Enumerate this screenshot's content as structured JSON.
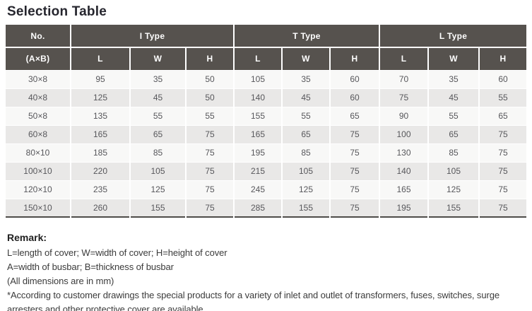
{
  "page": {
    "title": "Selection Table"
  },
  "colors": {
    "header_bg": "#56524e",
    "header_text": "#ffffff",
    "row_light": "#f8f8f7",
    "row_dark": "#e9e8e7",
    "cell_text": "#57575b",
    "table_bottom_border": "#4e4c49"
  },
  "table": {
    "no_header": "No.",
    "no_subheader": "(A×B)",
    "groups": [
      {
        "label": "I Type"
      },
      {
        "label": "T Type"
      },
      {
        "label": "L Type"
      }
    ],
    "sub_headers": [
      "L",
      "W",
      "H"
    ],
    "rows": [
      [
        "30×8",
        "95",
        "35",
        "50",
        "105",
        "35",
        "60",
        "70",
        "35",
        "60"
      ],
      [
        "40×8",
        "125",
        "45",
        "50",
        "140",
        "45",
        "60",
        "75",
        "45",
        "55"
      ],
      [
        "50×8",
        "135",
        "55",
        "55",
        "155",
        "55",
        "65",
        "90",
        "55",
        "65"
      ],
      [
        "60×8",
        "165",
        "65",
        "75",
        "165",
        "65",
        "75",
        "100",
        "65",
        "75"
      ],
      [
        "80×10",
        "185",
        "85",
        "75",
        "195",
        "85",
        "75",
        "130",
        "85",
        "75"
      ],
      [
        "100×10",
        "220",
        "105",
        "75",
        "215",
        "105",
        "75",
        "140",
        "105",
        "75"
      ],
      [
        "120×10",
        "235",
        "125",
        "75",
        "245",
        "125",
        "75",
        "165",
        "125",
        "75"
      ],
      [
        "150×10",
        "260",
        "155",
        "75",
        "285",
        "155",
        "75",
        "195",
        "155",
        "75"
      ]
    ]
  },
  "remark": {
    "heading": "Remark:",
    "lines": [
      "L=length of cover; W=width of cover; H=height of cover",
      "A=width of busbar; B=thickness of busbar",
      "(All dimensions are in mm)"
    ],
    "note": "*According to customer drawings the special products for a variety of inlet and outlet of transformers, fuses, switches, surge arresters and other protective cover are available."
  }
}
